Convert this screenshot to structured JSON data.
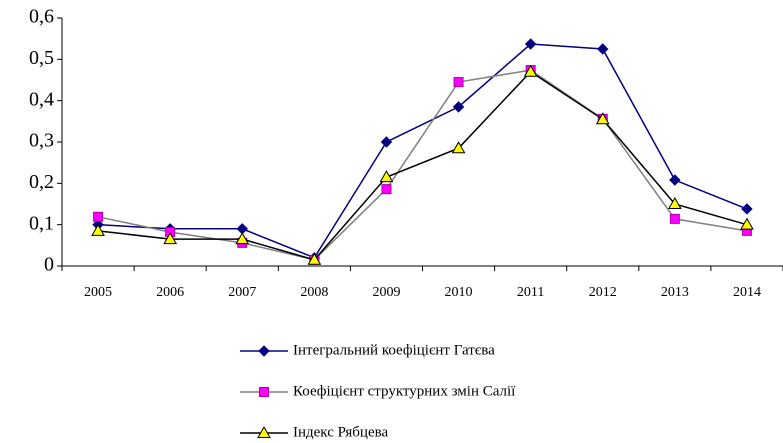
{
  "chart_data": {
    "type": "line",
    "categories": [
      "2005",
      "2006",
      "2007",
      "2008",
      "2009",
      "2010",
      "2011",
      "2012",
      "2013",
      "2014"
    ],
    "series": [
      {
        "name": "Інтегральний коефіцієнт Гатєва",
        "color": "#000080",
        "marker_color": "#000080",
        "marker": "diamond",
        "values": [
          0.1,
          0.09,
          0.09,
          0.02,
          0.3,
          0.385,
          0.537,
          0.525,
          0.208,
          0.138
        ]
      },
      {
        "name": "Коефіцієнт структурних змін Салії",
        "color": "#808080",
        "marker_color": "#ff00ff",
        "marker": "square",
        "values": [
          0.119,
          0.082,
          0.056,
          0.015,
          0.186,
          0.445,
          0.474,
          0.356,
          0.114,
          0.085
        ]
      },
      {
        "name": "Індекс Рябцева",
        "color": "#000000",
        "marker_color": "#ffff00",
        "marker": "triangle",
        "values": [
          0.085,
          0.065,
          0.065,
          0.015,
          0.215,
          0.285,
          0.47,
          0.355,
          0.15,
          0.1
        ]
      }
    ],
    "ylim": [
      0,
      0.6
    ],
    "yticks": [
      0,
      {
        "value": 0.1,
        "label": "0,1"
      },
      {
        "value": 0.2,
        "label": "0,2"
      },
      {
        "value": 0.3,
        "label": "0,3"
      },
      {
        "value": 0.4,
        "label": "0,4"
      },
      {
        "value": 0.5,
        "label": "0,5"
      },
      {
        "value": 0.6,
        "label": "0,6"
      }
    ],
    "grid": false,
    "legend": "bottom"
  }
}
